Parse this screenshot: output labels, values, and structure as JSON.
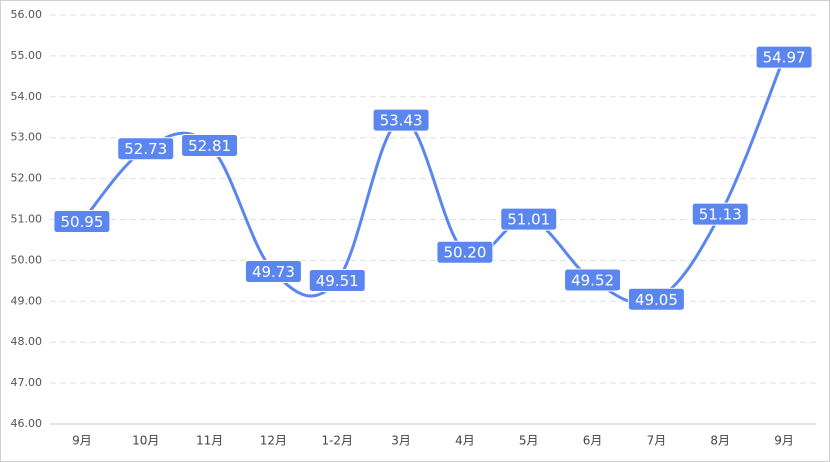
{
  "chart_data": {
    "type": "line",
    "categories": [
      "9月",
      "10月",
      "11月",
      "12月",
      "1-2月",
      "3月",
      "4月",
      "5月",
      "6月",
      "7月",
      "8月",
      "9月"
    ],
    "values": [
      50.95,
      52.73,
      52.81,
      49.73,
      49.51,
      53.43,
      50.2,
      51.01,
      49.52,
      49.05,
      51.13,
      54.97
    ],
    "value_labels": [
      "50.95",
      "52.73",
      "52.81",
      "49.73",
      "49.51",
      "53.43",
      "50.20",
      "51.01",
      "49.52",
      "49.05",
      "51.13",
      "54.97"
    ],
    "color": "#5b86f0",
    "ylim": [
      46,
      56
    ],
    "yticks": [
      {
        "value": 46,
        "label": "46.00"
      },
      {
        "value": 47,
        "label": "47.00"
      },
      {
        "value": 48,
        "label": "48.00"
      },
      {
        "value": 49,
        "label": "49.00"
      },
      {
        "value": 50,
        "label": "50.00"
      },
      {
        "value": 51,
        "label": "51.00"
      },
      {
        "value": 52,
        "label": "52.00"
      },
      {
        "value": 53,
        "label": "53.00"
      },
      {
        "value": 54,
        "label": "54.00"
      },
      {
        "value": 55,
        "label": "55.00"
      },
      {
        "value": 56,
        "label": "56.00"
      }
    ],
    "grid": true
  }
}
